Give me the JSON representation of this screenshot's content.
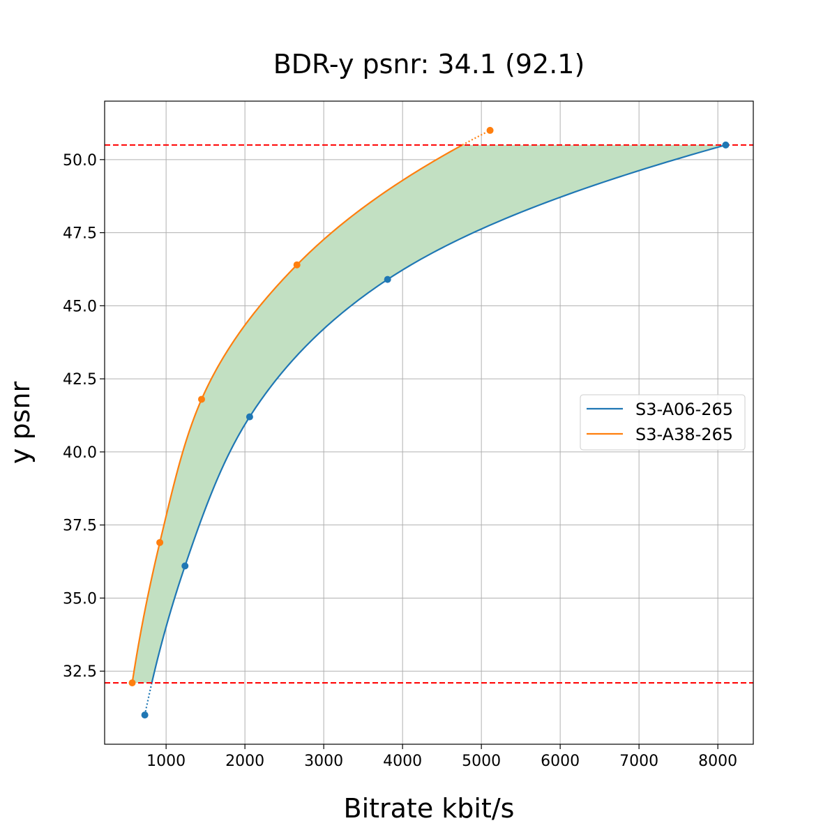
{
  "chart_data": {
    "type": "line",
    "title": "BDR-y psnr: 34.1 (92.1)",
    "xlabel": "Bitrate kbit/s",
    "ylabel": "y psnr",
    "xlim": [
      220,
      8450
    ],
    "ylim": [
      30.0,
      52.0
    ],
    "xticks": [
      1000,
      2000,
      3000,
      4000,
      5000,
      6000,
      7000,
      8000
    ],
    "yticks": [
      32.5,
      35.0,
      37.5,
      40.0,
      42.5,
      45.0,
      47.5,
      50.0
    ],
    "grid": true,
    "legend_position": "center-right",
    "threshold_lines": [
      32.1,
      50.5
    ],
    "series": [
      {
        "name": "S3-A06-265",
        "color": "#1f77b4",
        "points": [
          {
            "x": 730,
            "y": 31.0
          },
          {
            "x": 1240,
            "y": 36.1
          },
          {
            "x": 2060,
            "y": 41.2
          },
          {
            "x": 3810,
            "y": 45.9
          },
          {
            "x": 8100,
            "y": 50.5
          }
        ]
      },
      {
        "name": "S3-A38-265",
        "color": "#ff7f0e",
        "points": [
          {
            "x": 570,
            "y": 32.1
          },
          {
            "x": 920,
            "y": 36.9
          },
          {
            "x": 1450,
            "y": 41.8
          },
          {
            "x": 2660,
            "y": 46.4
          },
          {
            "x": 5110,
            "y": 51.0
          }
        ]
      }
    ],
    "fill_color": "#c2e0c2",
    "threshold_color": "#ff0000"
  }
}
